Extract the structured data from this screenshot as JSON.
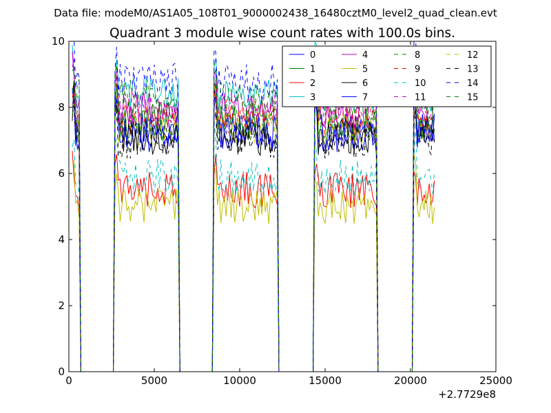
{
  "header": {
    "file_label": "Data file: modeM0/AS1A05_108T01_9000002438_16480cztM0_level2_quad_clean.evt"
  },
  "chart_data": {
    "type": "line",
    "title": "Quadrant 3 module wise count rates with 100.0s bins.",
    "xlabel": "",
    "ylabel": "",
    "xlim": [
      0,
      25000
    ],
    "ylim": [
      0,
      10
    ],
    "x_ticks": [
      0,
      5000,
      10000,
      15000,
      20000,
      25000
    ],
    "x_tick_labels": [
      "0",
      "5000",
      "10000",
      "15000",
      "20000",
      "25000"
    ],
    "y_ticks": [
      0,
      2,
      4,
      6,
      8,
      10
    ],
    "y_tick_labels": [
      "0",
      "2",
      "4",
      "6",
      "8",
      "10"
    ],
    "x_offset_label": "+2.7729e8",
    "legend_position": "top-right",
    "legend_columns": 4,
    "segments": [
      {
        "start": 200,
        "end": 600
      },
      {
        "start": 2700,
        "end": 6400
      },
      {
        "start": 8500,
        "end": 12200
      },
      {
        "start": 14400,
        "end": 18000
      },
      {
        "start": 20200,
        "end": 21400
      }
    ],
    "gap_value": 0,
    "series": [
      {
        "name": "0",
        "color": "#0000ff",
        "dashed": false,
        "level": 7.2
      },
      {
        "name": "1",
        "color": "#008000",
        "dashed": false,
        "level": 7.6
      },
      {
        "name": "2",
        "color": "#ff0000",
        "dashed": false,
        "level": 5.5
      },
      {
        "name": "3",
        "color": "#00bfbf",
        "dashed": false,
        "level": 8.4
      },
      {
        "name": "4",
        "color": "#bf00bf",
        "dashed": false,
        "level": 7.9
      },
      {
        "name": "5",
        "color": "#bfbf00",
        "dashed": false,
        "level": 5.0
      },
      {
        "name": "6",
        "color": "#000000",
        "dashed": false,
        "level": 7.1
      },
      {
        "name": "7",
        "color": "#0000ff",
        "dashed": false,
        "level": 7.3
      },
      {
        "name": "8",
        "color": "#008000",
        "dashed": true,
        "level": 7.5
      },
      {
        "name": "9",
        "color": "#ff0000",
        "dashed": true,
        "level": 7.7
      },
      {
        "name": "10",
        "color": "#00bfbf",
        "dashed": true,
        "level": 5.9
      },
      {
        "name": "11",
        "color": "#bf00bf",
        "dashed": true,
        "level": 8.0
      },
      {
        "name": "12",
        "color": "#bfbf00",
        "dashed": true,
        "level": 7.4
      },
      {
        "name": "13",
        "color": "#000000",
        "dashed": true,
        "level": 7.0
      },
      {
        "name": "14",
        "color": "#0000ff",
        "dashed": true,
        "level": 8.8
      },
      {
        "name": "15",
        "color": "#008000",
        "dashed": true,
        "level": 8.3
      }
    ]
  }
}
